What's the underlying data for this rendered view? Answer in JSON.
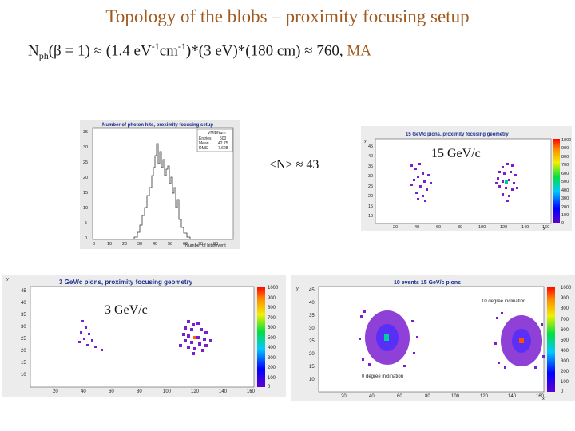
{
  "slide": {
    "title": "Topology of the blobs – proximity focusing setup",
    "formula": {
      "part1": "N",
      "sub_ph": "ph",
      "part2": "(β = 1) ≈ (1.4 e",
      "unit_v": "V",
      "sup1": "-1",
      "part3": "cm",
      "sup2": "-1",
      "part4": ")*(3 eV)*(180 cm) ≈ 760, ",
      "highlight": "MA"
    }
  },
  "histogram": {
    "title": "Number of photon hits, proximity focusing setup",
    "stats": {
      "name_label": "VMlBNum",
      "entries_label": "Entries",
      "entries_value": "500",
      "mean_label": "Mean",
      "mean_value": "42.75",
      "rms_label": "RMS",
      "rms_value": "7.628"
    },
    "xlabel": "Number of hits/event",
    "annotation": "<N> ≈ 43",
    "xticks": [
      "0",
      "10",
      "20",
      "30",
      "40",
      "50",
      "60",
      "70",
      "80"
    ],
    "yticks": [
      "0",
      "5",
      "10",
      "15",
      "20",
      "25",
      "30",
      "35"
    ]
  },
  "plots": {
    "p15": {
      "title": "15 GeV/c pions, proximity focusing geometry",
      "label": "15 GeV/c",
      "xticks": [
        "20",
        "40",
        "60",
        "80",
        "100",
        "120",
        "140",
        "160"
      ],
      "yticks": [
        "10",
        "15",
        "20",
        "25",
        "30",
        "35",
        "40",
        "45"
      ],
      "zticks": [
        "1000",
        "900",
        "800",
        "700",
        "600",
        "500",
        "400",
        "300",
        "200",
        "100",
        "0"
      ],
      "axis_x": "x",
      "axis_y": "y"
    },
    "p3": {
      "title": "3 GeV/c pions, proximity focusing geometry",
      "label": "3 GeV/c",
      "xticks": [
        "20",
        "40",
        "60",
        "80",
        "100",
        "120",
        "140",
        "160"
      ],
      "yticks": [
        "10",
        "15",
        "20",
        "25",
        "30",
        "35",
        "40",
        "45"
      ],
      "zticks": [
        "1000",
        "900",
        "800",
        "700",
        "600",
        "500",
        "400",
        "300",
        "200",
        "100",
        "0"
      ],
      "axis_x": "x",
      "axis_y": "y"
    },
    "p10": {
      "title": "10 events 15 GeV/c pions",
      "annotation_right": "10 degree inclination",
      "annotation_left": "0 degree inclination",
      "xticks": [
        "20",
        "40",
        "60",
        "80",
        "100",
        "120",
        "140",
        "160"
      ],
      "yticks": [
        "10",
        "15",
        "20",
        "25",
        "30",
        "35",
        "40",
        "45"
      ],
      "zticks": [
        "1000",
        "900",
        "800",
        "700",
        "600",
        "500",
        "400",
        "300",
        "200",
        "100",
        "0"
      ],
      "axis_x": "x",
      "axis_y": "y"
    }
  },
  "colors": {
    "title": "#a15a1f",
    "plot_title": "#1c2c8c",
    "hit": "#7a1fd0"
  }
}
